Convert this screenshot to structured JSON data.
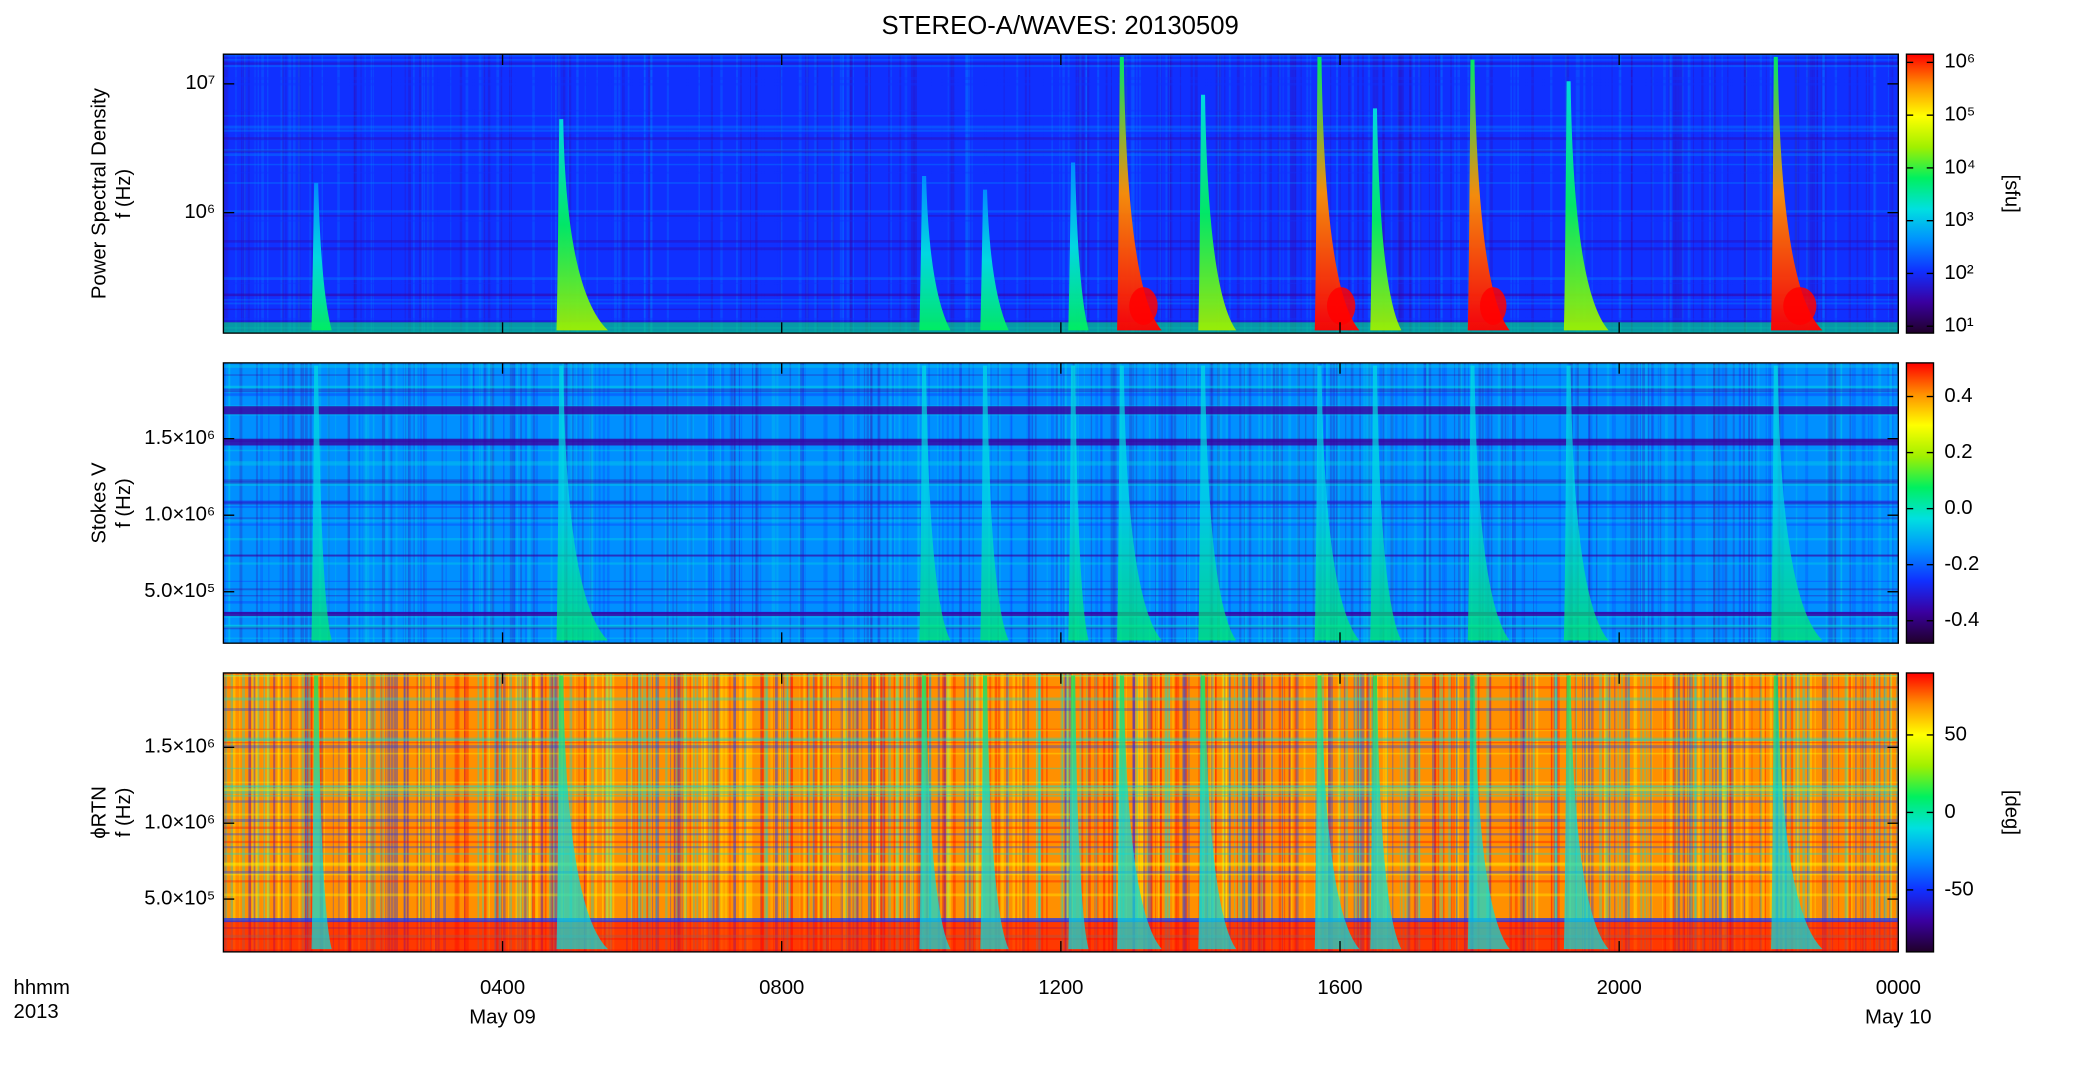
{
  "chart_data": [
    {
      "type": "heatmap",
      "title": "STEREO-A/WAVES: 20130509",
      "ylabel": [
        "Power Spectral Density",
        "f (Hz)"
      ],
      "xlim": [
        0,
        24
      ],
      "ylog": true,
      "ylim": [
        116000,
        17000000
      ],
      "yticks": [
        {
          "value": 1000000,
          "label": "10⁶"
        },
        {
          "value": 10000000,
          "label": "10⁷"
        }
      ],
      "colormap": [
        "#20002a",
        "#3a00a0",
        "#1030ff",
        "#0090ff",
        "#00e0e0",
        "#00f060",
        "#a0f000",
        "#ffff00",
        "#ff9000",
        "#ff0000"
      ],
      "colorbar": {
        "label": "[sfu]",
        "log": true,
        "lim": [
          7.4,
          1430000
        ],
        "ticks": [
          {
            "value": 10,
            "label": "10¹"
          },
          {
            "value": 100,
            "label": "10²"
          },
          {
            "value": 1000,
            "label": "10³"
          },
          {
            "value": 10000,
            "label": "10⁴"
          },
          {
            "value": 100000,
            "label": "10⁵"
          },
          {
            "value": 1000000,
            "label": "10⁶"
          }
        ]
      }
    },
    {
      "type": "heatmap",
      "ylabel": [
        "Stokes V",
        "f (Hz)"
      ],
      "xlim": [
        0,
        24
      ],
      "ylim": [
        164000,
        1995000
      ],
      "yticks": [
        {
          "value": 500000,
          "label": "5.0×10⁵"
        },
        {
          "value": 1000000,
          "label": "1.0×10⁶"
        },
        {
          "value": 1500000,
          "label": "1.5×10⁶"
        }
      ],
      "colormap": [
        "#20002a",
        "#3a00a0",
        "#1030ff",
        "#0090ff",
        "#00e0e0",
        "#00f060",
        "#a0f000",
        "#ffff00",
        "#ff9000",
        "#ff0000"
      ],
      "colorbar": {
        "lim": [
          -0.48,
          0.52
        ],
        "ticks": [
          -0.4,
          -0.2,
          {
            "value": 0,
            "label": "0.0"
          },
          0.2,
          0.4
        ]
      }
    },
    {
      "type": "heatmap",
      "ylabel": [
        "ϕRTN",
        "f (Hz)"
      ],
      "xlabel": [
        "hhmm",
        "2013"
      ],
      "xlim": [
        0,
        24
      ],
      "ylim": [
        152000,
        1990000
      ],
      "yticks": [
        {
          "value": 500000,
          "label": "5.0×10⁵"
        },
        {
          "value": 1000000,
          "label": "1.0×10⁶"
        },
        {
          "value": 1500000,
          "label": "1.5×10⁶"
        }
      ],
      "xticks": [
        {
          "value": 4,
          "label": "0400"
        },
        {
          "value": 8,
          "label": "0800"
        },
        {
          "value": 12,
          "label": "1200"
        },
        {
          "value": 16,
          "label": "1600"
        },
        {
          "value": 20,
          "label": "2000"
        },
        {
          "value": 24,
          "label": "0000"
        }
      ],
      "date_labels": [
        {
          "value": 4,
          "label": "May 09"
        },
        {
          "value": 24,
          "label": "May 10"
        }
      ],
      "colormap": [
        "#20002a",
        "#3a00a0",
        "#1030ff",
        "#0090ff",
        "#00e0e0",
        "#00f060",
        "#a0f000",
        "#ffff00",
        "#ff9000",
        "#ff0000"
      ],
      "colorbar": {
        "label": "[deg]",
        "lim": [
          -90,
          90
        ],
        "ticks": [
          -50,
          0,
          50
        ]
      }
    }
  ]
}
